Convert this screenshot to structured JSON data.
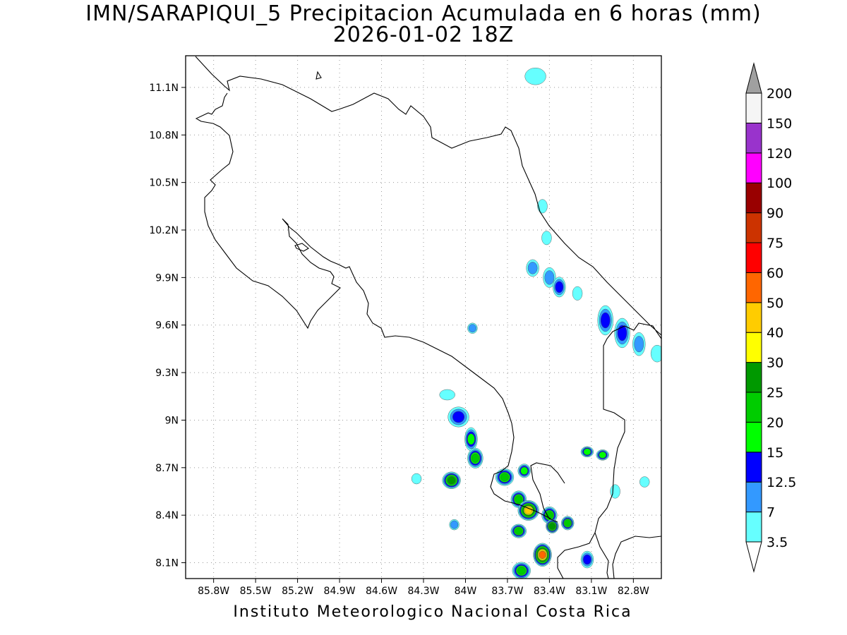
{
  "title": {
    "line1": "IMN/SARAPIQUI_5 Precipitacion Acumulada en 6 horas (mm)",
    "line2": "2026-01-02 18Z"
  },
  "footer": "Instituto Meteorologico Nacional Costa Rica",
  "map": {
    "lon_range": [
      -86.0,
      -82.6
    ],
    "lat_range": [
      8.0,
      11.3
    ],
    "lon_ticks": [
      {
        "value": -85.8,
        "label": "85.8W"
      },
      {
        "value": -85.5,
        "label": "85.5W"
      },
      {
        "value": -85.2,
        "label": "85.2W"
      },
      {
        "value": -84.9,
        "label": "84.9W"
      },
      {
        "value": -84.6,
        "label": "84.6W"
      },
      {
        "value": -84.3,
        "label": "84.3W"
      },
      {
        "value": -84.0,
        "label": "84W"
      },
      {
        "value": -83.7,
        "label": "83.7W"
      },
      {
        "value": -83.4,
        "label": "83.4W"
      },
      {
        "value": -83.1,
        "label": "83.1W"
      },
      {
        "value": -82.8,
        "label": "82.8W"
      }
    ],
    "lat_ticks": [
      {
        "value": 8.1,
        "label": "8.1N"
      },
      {
        "value": 8.4,
        "label": "8.4N"
      },
      {
        "value": 8.7,
        "label": "8.7N"
      },
      {
        "value": 9.0,
        "label": "9N"
      },
      {
        "value": 9.3,
        "label": "9.3N"
      },
      {
        "value": 9.6,
        "label": "9.6N"
      },
      {
        "value": 9.9,
        "label": "9.9N"
      },
      {
        "value": 10.2,
        "label": "10.2N"
      },
      {
        "value": 10.5,
        "label": "10.5N"
      },
      {
        "value": 10.8,
        "label": "10.8N"
      },
      {
        "value": 11.1,
        "label": "11.1N"
      }
    ],
    "grid": "dotted",
    "coastline_color": "#000000",
    "precip_cells": [
      {
        "lon": -83.5,
        "lat": 11.17,
        "level": 0,
        "rx": 0.06,
        "ry": 0.04
      },
      {
        "lon": -83.45,
        "lat": 10.35,
        "level": 0,
        "rx": 0.02,
        "ry": 0.03
      },
      {
        "lon": -83.42,
        "lat": 10.15,
        "level": 0,
        "rx": 0.02,
        "ry": 0.03
      },
      {
        "lon": -83.52,
        "lat": 9.96,
        "level": 1,
        "rx": 0.03,
        "ry": 0.04
      },
      {
        "lon": -83.4,
        "lat": 9.9,
        "level": 1,
        "rx": 0.03,
        "ry": 0.05
      },
      {
        "lon": -83.33,
        "lat": 9.84,
        "level": 2,
        "rx": 0.03,
        "ry": 0.05
      },
      {
        "lon": -83.2,
        "lat": 9.8,
        "level": 0,
        "rx": 0.02,
        "ry": 0.03
      },
      {
        "lon": -83.0,
        "lat": 9.63,
        "level": 2,
        "rx": 0.04,
        "ry": 0.08
      },
      {
        "lon": -82.88,
        "lat": 9.55,
        "level": 2,
        "rx": 0.04,
        "ry": 0.08
      },
      {
        "lon": -82.76,
        "lat": 9.48,
        "level": 1,
        "rx": 0.03,
        "ry": 0.06
      },
      {
        "lon": -82.63,
        "lat": 9.42,
        "level": 0,
        "rx": 0.03,
        "ry": 0.04
      },
      {
        "lon": -83.95,
        "lat": 9.58,
        "level": 1,
        "rx": 0.02,
        "ry": 0.02
      },
      {
        "lon": -84.13,
        "lat": 9.16,
        "level": 0,
        "rx": 0.04,
        "ry": 0.02
      },
      {
        "lon": -84.05,
        "lat": 9.02,
        "level": 2,
        "rx": 0.06,
        "ry": 0.05
      },
      {
        "lon": -83.96,
        "lat": 8.88,
        "level": 3,
        "rx": 0.03,
        "ry": 0.06
      },
      {
        "lon": -83.93,
        "lat": 8.76,
        "level": 4,
        "rx": 0.04,
        "ry": 0.05
      },
      {
        "lon": -84.1,
        "lat": 8.62,
        "level": 5,
        "rx": 0.05,
        "ry": 0.04
      },
      {
        "lon": -83.72,
        "lat": 8.64,
        "level": 4,
        "rx": 0.05,
        "ry": 0.04
      },
      {
        "lon": -83.58,
        "lat": 8.68,
        "level": 3,
        "rx": 0.03,
        "ry": 0.03
      },
      {
        "lon": -83.62,
        "lat": 8.5,
        "level": 4,
        "rx": 0.04,
        "ry": 0.04
      },
      {
        "lon": -83.55,
        "lat": 8.43,
        "level": 7,
        "rx": 0.06,
        "ry": 0.05
      },
      {
        "lon": -83.4,
        "lat": 8.4,
        "level": 4,
        "rx": 0.04,
        "ry": 0.04
      },
      {
        "lon": -83.38,
        "lat": 8.33,
        "level": 5,
        "rx": 0.03,
        "ry": 0.03
      },
      {
        "lon": -83.27,
        "lat": 8.35,
        "level": 4,
        "rx": 0.03,
        "ry": 0.03
      },
      {
        "lon": -83.62,
        "lat": 8.3,
        "level": 4,
        "rx": 0.04,
        "ry": 0.03
      },
      {
        "lon": -83.45,
        "lat": 8.15,
        "level": 8,
        "rx": 0.05,
        "ry": 0.06
      },
      {
        "lon": -83.6,
        "lat": 8.05,
        "level": 4,
        "rx": 0.05,
        "ry": 0.04
      },
      {
        "lon": -83.13,
        "lat": 8.12,
        "level": 2,
        "rx": 0.03,
        "ry": 0.04
      },
      {
        "lon": -83.13,
        "lat": 8.8,
        "level": 3,
        "rx": 0.03,
        "ry": 0.02
      },
      {
        "lon": -83.02,
        "lat": 8.78,
        "level": 3,
        "rx": 0.03,
        "ry": 0.02
      },
      {
        "lon": -82.93,
        "lat": 8.55,
        "level": 0,
        "rx": 0.02,
        "ry": 0.03
      },
      {
        "lon": -84.35,
        "lat": 8.63,
        "level": 0,
        "rx": 0.02,
        "ry": 0.02
      },
      {
        "lon": -84.08,
        "lat": 8.34,
        "level": 1,
        "rx": 0.02,
        "ry": 0.02
      },
      {
        "lon": -82.72,
        "lat": 8.61,
        "level": 0,
        "rx": 0.02,
        "ry": 0.02
      }
    ]
  },
  "colorbar": {
    "labels": [
      "3.5",
      "7",
      "12.5",
      "15",
      "20",
      "25",
      "30",
      "40",
      "50",
      "60",
      "75",
      "90",
      "100",
      "120",
      "150",
      "200"
    ],
    "colors": [
      "#66ffff",
      "#3399ff",
      "#0000ff",
      "#00ff00",
      "#00cc00",
      "#009900",
      "#ffff00",
      "#ffcc00",
      "#ff6600",
      "#ff0000",
      "#cc3300",
      "#990000",
      "#ff00ff",
      "#9933cc",
      "#f5f5f5"
    ],
    "over_color": "#a0a0a0",
    "under_color": "#ffffff"
  }
}
